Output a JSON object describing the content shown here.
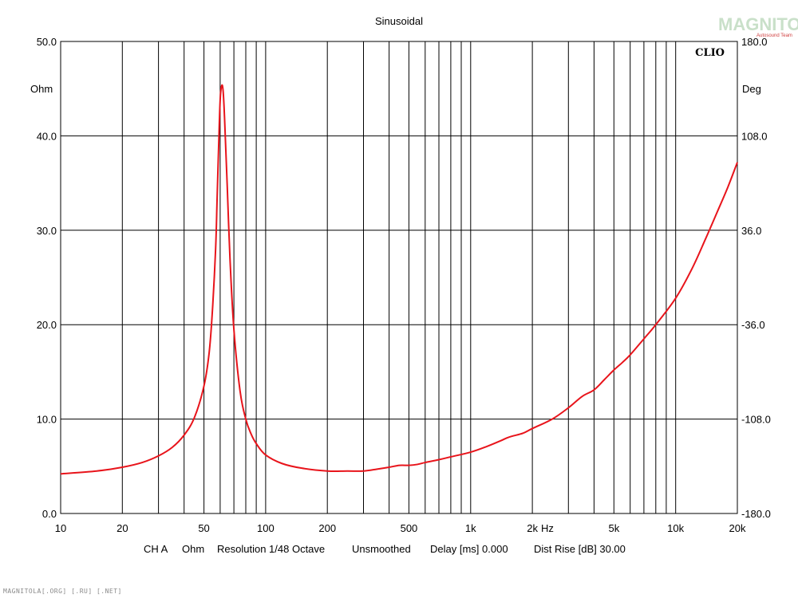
{
  "chart_data": {
    "type": "line",
    "title": "Sinusoidal",
    "brand": "CLIO",
    "x_scale": "log",
    "xlim": [
      10,
      20000
    ],
    "x_unit": "Hz",
    "x_ticks": [
      {
        "value": 10,
        "label": "10"
      },
      {
        "value": 20,
        "label": "20"
      },
      {
        "value": 50,
        "label": "50"
      },
      {
        "value": 100,
        "label": "100"
      },
      {
        "value": 200,
        "label": "200"
      },
      {
        "value": 500,
        "label": "500"
      },
      {
        "value": 1000,
        "label": "1k"
      },
      {
        "value": 2000,
        "label": "2k"
      },
      {
        "value": 5000,
        "label": "5k"
      },
      {
        "value": 10000,
        "label": "10k"
      },
      {
        "value": 20000,
        "label": "20k"
      }
    ],
    "ylim": [
      0,
      50
    ],
    "ylabel": "Ohm",
    "y_ticks": [
      "0.0",
      "10.0",
      "20.0",
      "30.0",
      "40.0",
      "50.0"
    ],
    "y2lim": [
      -180,
      180
    ],
    "y2label": "Deg",
    "y2_ticks": [
      "-180.0",
      "-108.0",
      "-36.0",
      "36.0",
      "108.0",
      "180.0"
    ],
    "grid": true,
    "series": [
      {
        "color": "#e8141b",
        "x": [
          10,
          15,
          20,
          25,
          30,
          35,
          40,
          45,
          50,
          53,
          55,
          57,
          58,
          59,
          60,
          61,
          62,
          63,
          65,
          67,
          70,
          75,
          80,
          85,
          90,
          100,
          120,
          150,
          200,
          250,
          300,
          350,
          400,
          450,
          500,
          550,
          600,
          700,
          800,
          1000,
          1200,
          1400,
          1500,
          1600,
          1800,
          2000,
          2500,
          3000,
          3500,
          4000,
          4500,
          5000,
          5500,
          6000,
          7000,
          8000,
          10000,
          12000,
          14000,
          16000,
          18000,
          20000
        ],
        "y": [
          4.2,
          4.5,
          4.9,
          5.4,
          6.1,
          7.0,
          8.3,
          10.2,
          13.5,
          17.0,
          21.5,
          28.0,
          33.5,
          39.0,
          43.8,
          45.3,
          44.8,
          42.0,
          34.5,
          27.0,
          19.5,
          13.0,
          10.0,
          8.4,
          7.4,
          6.2,
          5.3,
          4.8,
          4.5,
          4.5,
          4.5,
          4.7,
          4.9,
          5.1,
          5.1,
          5.2,
          5.4,
          5.7,
          6.0,
          6.5,
          7.1,
          7.7,
          8.0,
          8.2,
          8.5,
          9.0,
          10.0,
          11.2,
          12.4,
          13.1,
          14.2,
          15.2,
          16.0,
          16.8,
          18.5,
          20.0,
          22.8,
          25.9,
          29.1,
          32.0,
          34.6,
          37.2
        ]
      }
    ]
  },
  "footer": {
    "channel": "CH A",
    "unit": "Ohm",
    "resolution": "Resolution 1/48 Octave",
    "smoothing": "Unsmoothed",
    "delay": "Delay [ms] 0.000",
    "dist_rise": "Dist Rise [dB] 30.00"
  },
  "watermark": {
    "main": "MAGNITOLA",
    "sub": "Autosound Team",
    "footer": "MAGNITOLA[.ORG] [.RU] [.NET]"
  }
}
